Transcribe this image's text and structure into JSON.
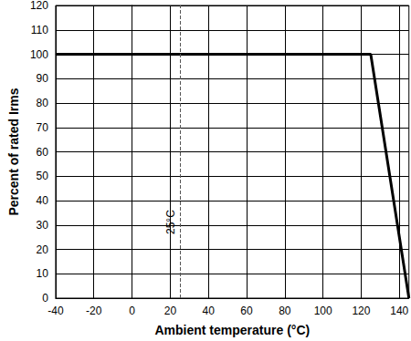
{
  "chart_data": {
    "type": "line",
    "x_label": "Ambient temperature (°C)",
    "y_label": "Percent of rated Irms",
    "x": [
      -40,
      125,
      145
    ],
    "values": [
      100,
      100,
      0
    ],
    "color": "#000000",
    "xlim": [
      -40,
      145
    ],
    "xticks": [
      -40,
      -20,
      0,
      20,
      40,
      60,
      80,
      100,
      120,
      140
    ],
    "ylim": [
      0,
      120
    ],
    "yticks": [
      0,
      10,
      20,
      30,
      40,
      50,
      60,
      70,
      80,
      90,
      100,
      110,
      120
    ],
    "grid": true,
    "annotations": [
      {
        "x": 25,
        "text": "25°C",
        "line_style": "dashed"
      }
    ]
  }
}
